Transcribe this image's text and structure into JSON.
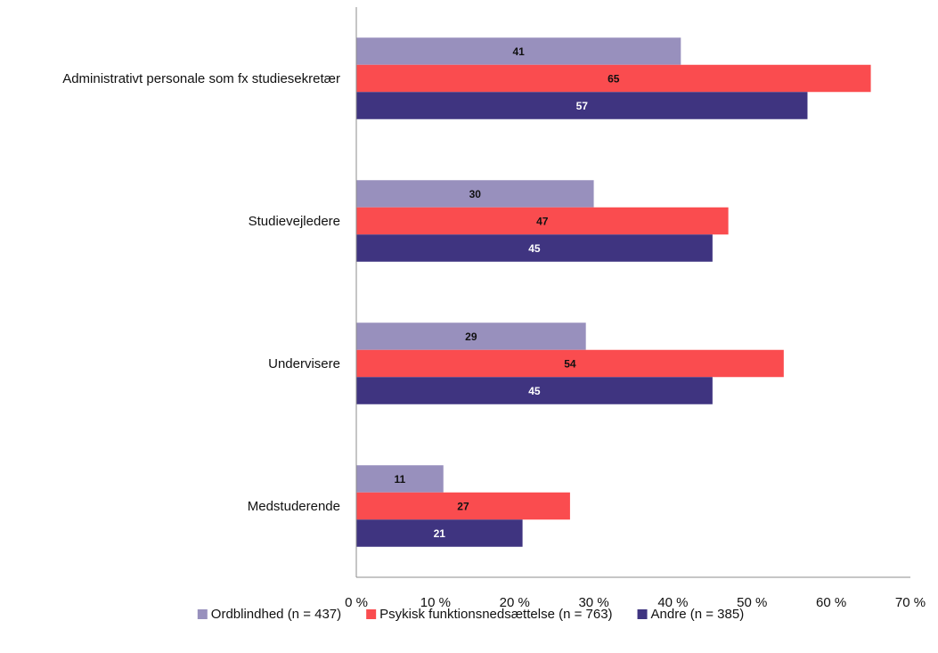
{
  "chart_data": {
    "type": "bar",
    "orientation": "horizontal",
    "categories": [
      "Administrativt personale som fx studiesekretær",
      "Studievejledere",
      "Undervisere",
      "Medstuderende"
    ],
    "series": [
      {
        "name": "Ordblindhed (n = 437)",
        "color": "#9890bd",
        "label_color": "#111111",
        "values": [
          41,
          30,
          29,
          11
        ]
      },
      {
        "name": "Psykisk funktionsnedsættelse (n = 763)",
        "color": "#fa4c4f",
        "label_color": "#111111",
        "values": [
          65,
          47,
          54,
          27
        ]
      },
      {
        "name": "Andre (n = 385)",
        "color": "#3f3480",
        "label_color": "#ffffff",
        "values": [
          57,
          45,
          45,
          21
        ]
      }
    ],
    "xlim": [
      0,
      70
    ],
    "xticks": [
      0,
      10,
      20,
      30,
      40,
      50,
      60,
      70
    ],
    "tick_labels": [
      "0 %",
      "10 %",
      "20 %",
      "30 %",
      "40 %",
      "50 %",
      "60 %",
      "70 %"
    ],
    "title": "",
    "xlabel": "",
    "ylabel": "",
    "grid": false,
    "legend_position": "bottom"
  }
}
